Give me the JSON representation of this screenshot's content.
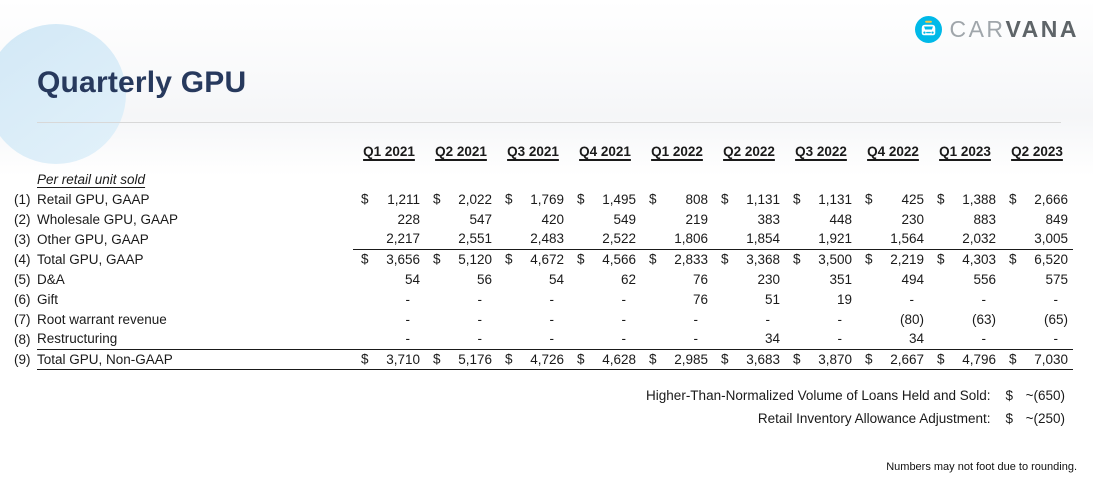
{
  "logo": {
    "car": "CAR",
    "vana": "VANA"
  },
  "title": "Quarterly GPU",
  "table": {
    "unit_label": "Per retail unit sold",
    "columns": [
      "Q1 2021",
      "Q2 2021",
      "Q3 2021",
      "Q4 2021",
      "Q1 2022",
      "Q2 2022",
      "Q3 2022",
      "Q4 2022",
      "Q1 2023",
      "Q2 2023"
    ],
    "currency_symbol": "$",
    "rows": [
      {
        "num": "(1)",
        "label": "Retail GPU, GAAP",
        "dollar": true,
        "sumline": false,
        "total": false,
        "values": [
          "1,211",
          "2,022",
          "1,769",
          "1,495",
          "808",
          "1,131",
          "1,131",
          "425",
          "1,388",
          "2,666"
        ]
      },
      {
        "num": "(2)",
        "label": "Wholesale GPU, GAAP",
        "dollar": false,
        "sumline": false,
        "total": false,
        "values": [
          "228",
          "547",
          "420",
          "549",
          "219",
          "383",
          "448",
          "230",
          "883",
          "849"
        ]
      },
      {
        "num": "(3)",
        "label": "Other GPU, GAAP",
        "dollar": false,
        "sumline": true,
        "total": false,
        "values": [
          "2,217",
          "2,551",
          "2,483",
          "2,522",
          "1,806",
          "1,854",
          "1,921",
          "1,564",
          "2,032",
          "3,005"
        ]
      },
      {
        "num": "(4)",
        "label": "Total GPU, GAAP",
        "dollar": true,
        "sumline": false,
        "total": false,
        "values": [
          "3,656",
          "5,120",
          "4,672",
          "4,566",
          "2,833",
          "3,368",
          "3,500",
          "2,219",
          "4,303",
          "6,520"
        ]
      },
      {
        "num": "(5)",
        "label": "D&A",
        "dollar": false,
        "sumline": false,
        "total": false,
        "values": [
          "54",
          "56",
          "54",
          "62",
          "76",
          "230",
          "351",
          "494",
          "556",
          "575"
        ]
      },
      {
        "num": "(6)",
        "label": "Gift",
        "dollar": false,
        "sumline": false,
        "total": false,
        "values": [
          "-",
          "-",
          "-",
          "-",
          "76",
          "51",
          "19",
          "-",
          "-",
          "-"
        ]
      },
      {
        "num": "(7)",
        "label": "Root warrant revenue",
        "dollar": false,
        "sumline": false,
        "total": false,
        "values": [
          "-",
          "-",
          "-",
          "-",
          "-",
          "-",
          "-",
          "(80)",
          "(63)",
          "(65)"
        ]
      },
      {
        "num": "(8)",
        "label": "Restructuring",
        "dollar": false,
        "sumline": false,
        "total": false,
        "values": [
          "-",
          "-",
          "-",
          "-",
          "-",
          "34",
          "-",
          "34",
          "-",
          "-"
        ]
      },
      {
        "num": "(9)",
        "label": "Total GPU, Non-GAAP",
        "dollar": true,
        "sumline": false,
        "total": true,
        "values": [
          "3,710",
          "5,176",
          "4,726",
          "4,628",
          "2,985",
          "3,683",
          "3,870",
          "2,667",
          "4,796",
          "7,030"
        ]
      }
    ]
  },
  "notes": [
    {
      "label": "Higher-Than-Normalized Volume of Loans Held and Sold:",
      "currency": "$",
      "value": "~(650)"
    },
    {
      "label": "Retail Inventory Allowance Adjustment:",
      "currency": "$",
      "value": "~(250)"
    }
  ],
  "footnote": "Numbers may not foot due to rounding.",
  "colors": {
    "title_navy": "#27395d",
    "logo_cyan": "#00b9e8",
    "circle_fill": "#d9ecf8"
  }
}
